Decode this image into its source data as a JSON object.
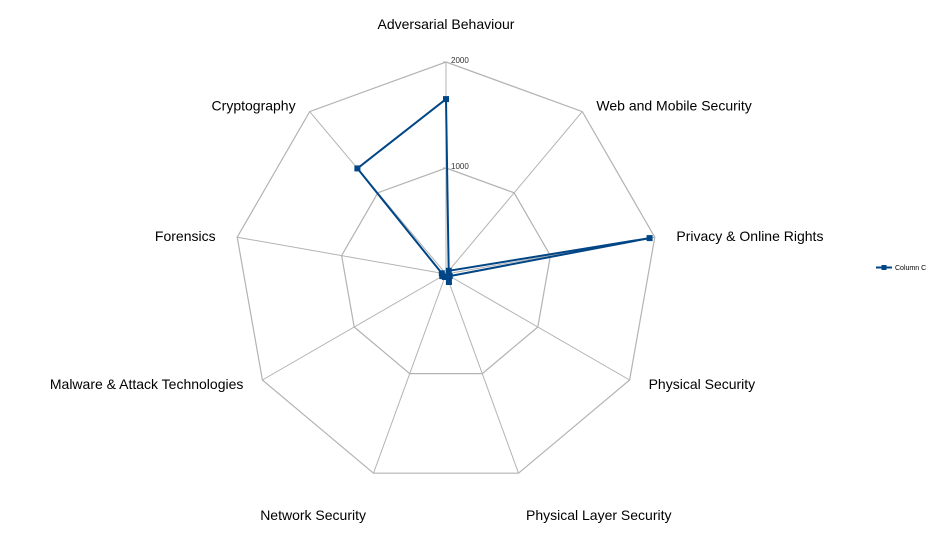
{
  "chart_data": {
    "type": "radar",
    "categories": [
      "Adversarial Behaviour",
      "Web and Mobile Security",
      "Privacy & Online Rights",
      "Physical Security",
      "Physical Layer Security",
      "Network Security",
      "Malware & Attack Technologies",
      "Forensics",
      "Cryptography"
    ],
    "series": [
      {
        "name": "Column C",
        "values": [
          1650,
          40,
          1950,
          40,
          80,
          30,
          40,
          40,
          1300
        ]
      }
    ],
    "rlim": [
      0,
      2000
    ],
    "ticks": [
      1000,
      2000
    ],
    "tick_labels": [
      "1000",
      "2000"
    ],
    "grid": true,
    "legend_position": "right",
    "colors": {
      "series": "#004586",
      "grid": "#b3b3b3"
    }
  }
}
